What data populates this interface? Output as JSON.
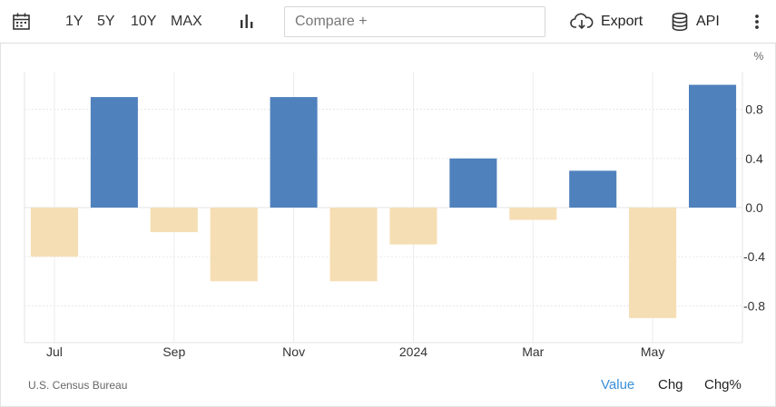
{
  "toolbar": {
    "ranges": [
      "1Y",
      "5Y",
      "10Y",
      "MAX"
    ],
    "compare_placeholder": "Compare +",
    "export_label": "Export",
    "api_label": "API",
    "icons": [
      "calendar-icon",
      "bar-chart-icon",
      "cloud-download-icon",
      "database-icon",
      "more-vertical-icon"
    ]
  },
  "footer": {
    "source": "U.S. Census Bureau",
    "modes": [
      "Value",
      "Chg",
      "Chg%"
    ],
    "active_mode": "Value",
    "active_color": "#3b8fd9"
  },
  "chart_data": {
    "type": "bar",
    "unit_label": "%",
    "categories": [
      "2023-07",
      "2023-08",
      "2023-09",
      "2023-10",
      "2023-11",
      "2023-12",
      "2024-01",
      "2024-02",
      "2024-03",
      "2024-04",
      "2024-05",
      "2024-06"
    ],
    "values": [
      -0.4,
      0.9,
      -0.2,
      -0.6,
      0.9,
      -0.6,
      -0.3,
      0.4,
      -0.1,
      0.3,
      -0.9,
      1.0
    ],
    "x_tick_labels": [
      {
        "category": "2023-07",
        "label": "Jul"
      },
      {
        "category": "2023-09",
        "label": "Sep"
      },
      {
        "category": "2023-11",
        "label": "Nov"
      },
      {
        "category": "2024-01",
        "label": "2024"
      },
      {
        "category": "2024-03",
        "label": "Mar"
      },
      {
        "category": "2024-05",
        "label": "May"
      }
    ],
    "y_ticks": [
      0.8,
      0.4,
      0.0,
      -0.4,
      -0.8
    ],
    "y_tick_labels": [
      "0.8",
      "0.4",
      "0.0",
      "-0.4",
      "-0.8"
    ],
    "ylim": [
      -1.1,
      1.1
    ],
    "positive_color": "#4f81bd",
    "negative_color": "#f5deb3",
    "grid": true,
    "legend": "none"
  }
}
